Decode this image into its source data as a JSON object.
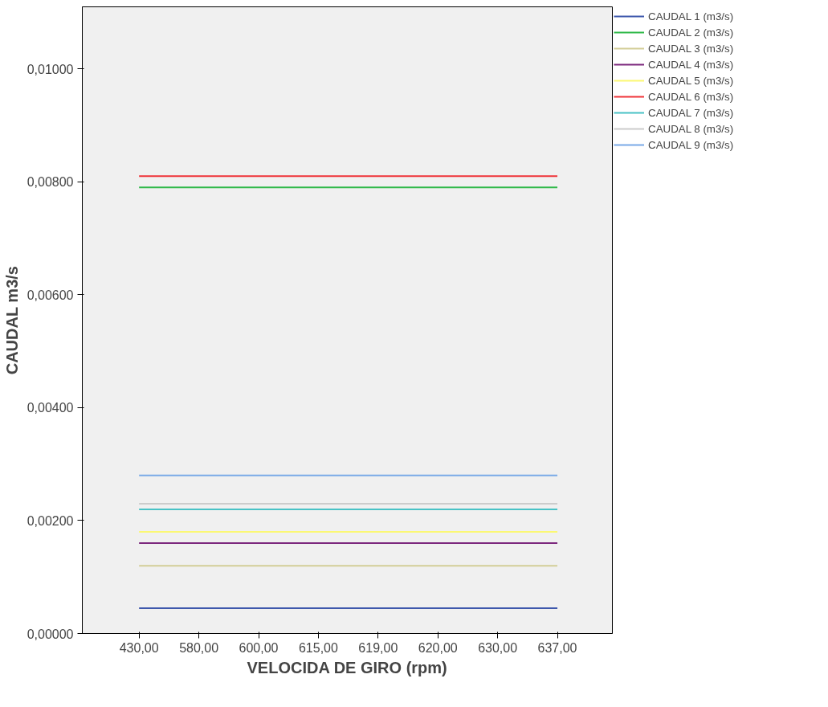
{
  "chart_data": {
    "type": "line",
    "xlabel": "VELOCIDA DE GIRO (rpm)",
    "ylabel": "CAUDAL m3/s",
    "categories": [
      "430,00",
      "580,00",
      "600,00",
      "615,00",
      "619,00",
      "620,00",
      "630,00",
      "637,00"
    ],
    "ylim": [
      0,
      0.0111
    ],
    "yticks": [
      {
        "value": 0,
        "label": "0,00000"
      },
      {
        "value": 0.002,
        "label": "0,00200"
      },
      {
        "value": 0.004,
        "label": "0,00400"
      },
      {
        "value": 0.006,
        "label": "0,00600"
      },
      {
        "value": 0.008,
        "label": "0,00800"
      },
      {
        "value": 0.01,
        "label": "0,01000"
      }
    ],
    "grid": false,
    "legend": "top right",
    "marker": "none",
    "line_style": "solid",
    "series": [
      {
        "name": "CAUDAL 1 (m3/s)",
        "color": "#3e58ac",
        "values": [
          0.00045,
          0.00045,
          0.00045,
          0.00045,
          0.00045,
          0.00045,
          0.00045,
          0.00045
        ]
      },
      {
        "name": "CAUDAL 2 (m3/s)",
        "color": "#2eb848",
        "values": [
          0.0079,
          0.0079,
          0.0079,
          0.0079,
          0.0079,
          0.0079,
          0.0079,
          0.0079
        ]
      },
      {
        "name": "CAUDAL 3 (m3/s)",
        "color": "#d3ce97",
        "values": [
          0.0012,
          0.0012,
          0.0012,
          0.0012,
          0.0012,
          0.0012,
          0.0012,
          0.0012
        ]
      },
      {
        "name": "CAUDAL 4 (m3/s)",
        "color": "#7c287d",
        "values": [
          0.0016,
          0.0016,
          0.0016,
          0.0016,
          0.0016,
          0.0016,
          0.0016,
          0.0016
        ]
      },
      {
        "name": "CAUDAL 5 (m3/s)",
        "color": "#fbf873",
        "values": [
          0.0018,
          0.0018,
          0.0018,
          0.0018,
          0.0018,
          0.0018,
          0.0018,
          0.0018
        ]
      },
      {
        "name": "CAUDAL 6 (m3/s)",
        "color": "#ef3338",
        "values": [
          0.0081,
          0.0081,
          0.0081,
          0.0081,
          0.0081,
          0.0081,
          0.0081,
          0.0081
        ]
      },
      {
        "name": "CAUDAL 7 (m3/s)",
        "color": "#48c2c5",
        "values": [
          0.0022,
          0.0022,
          0.0022,
          0.0022,
          0.0022,
          0.0022,
          0.0022,
          0.0022
        ]
      },
      {
        "name": "CAUDAL 8 (m3/s)",
        "color": "#cccccc",
        "values": [
          0.0023,
          0.0023,
          0.0023,
          0.0023,
          0.0023,
          0.0023,
          0.0023,
          0.0023
        ]
      },
      {
        "name": "CAUDAL 9 (m3/s)",
        "color": "#7aaae7",
        "values": [
          0.0028,
          0.0028,
          0.0028,
          0.0028,
          0.0028,
          0.0028,
          0.0028,
          0.0028
        ]
      }
    ]
  }
}
